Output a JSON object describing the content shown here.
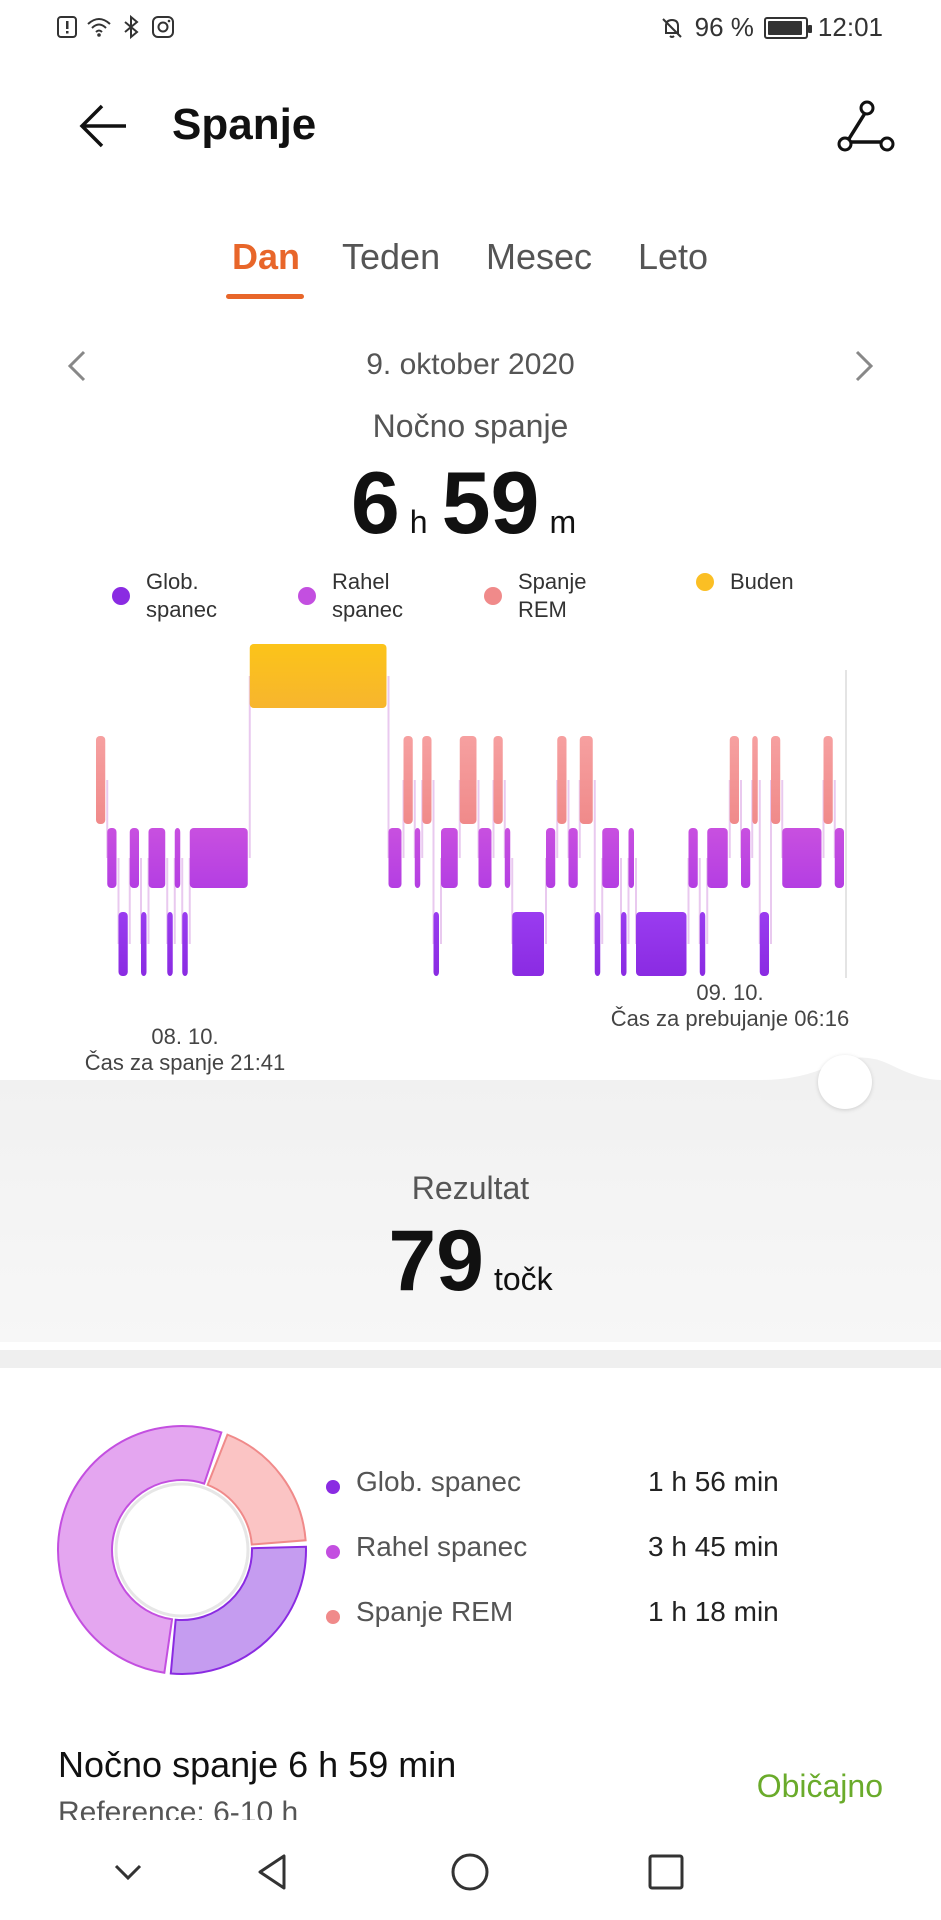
{
  "status_bar": {
    "battery": "96 %",
    "battery_level": 0.96,
    "time": "12:01"
  },
  "header": {
    "title": "Spanje"
  },
  "tabs": [
    {
      "label": "Dan",
      "active": true
    },
    {
      "label": "Teden",
      "active": false
    },
    {
      "label": "Mesec",
      "active": false
    },
    {
      "label": "Leto",
      "active": false
    }
  ],
  "date": "9. oktober 2020",
  "night": {
    "label": "Nočno spanje",
    "hours": "6",
    "hours_unit": "h",
    "minutes": "59",
    "minutes_unit": "m"
  },
  "legend": [
    {
      "label": "Glob. spanec",
      "color": "#8a2be2"
    },
    {
      "label": "Rahel spanec",
      "color": "#c34fe0"
    },
    {
      "label": "Spanje REM",
      "color": "#f08a8a"
    },
    {
      "label": "Buden",
      "color": "#fbbf24"
    }
  ],
  "chart": {
    "start_date": "08. 10.",
    "start_text": "Čas za spanje 21:41",
    "end_date": "09. 10.",
    "end_text": "Čas za prebujanje 06:16"
  },
  "chart_data": {
    "type": "bar",
    "levels": [
      "Buden",
      "Spanje REM",
      "Rahel spanec",
      "Glob. spanec"
    ],
    "start": "21:41",
    "end": "06:16",
    "segments": [
      {
        "stage": "Spanje REM",
        "from": 0.0,
        "to": 0.015
      },
      {
        "stage": "Rahel spanec",
        "from": 0.015,
        "to": 0.03
      },
      {
        "stage": "Glob. spanec",
        "from": 0.03,
        "to": 0.045
      },
      {
        "stage": "Rahel spanec",
        "from": 0.045,
        "to": 0.06
      },
      {
        "stage": "Glob. spanec",
        "from": 0.06,
        "to": 0.07
      },
      {
        "stage": "Rahel spanec",
        "from": 0.07,
        "to": 0.095
      },
      {
        "stage": "Glob. spanec",
        "from": 0.095,
        "to": 0.105
      },
      {
        "stage": "Rahel spanec",
        "from": 0.105,
        "to": 0.115
      },
      {
        "stage": "Glob. spanec",
        "from": 0.115,
        "to": 0.125
      },
      {
        "stage": "Rahel spanec",
        "from": 0.125,
        "to": 0.205
      },
      {
        "stage": "Buden",
        "from": 0.205,
        "to": 0.39
      },
      {
        "stage": "Rahel spanec",
        "from": 0.39,
        "to": 0.41
      },
      {
        "stage": "Spanje REM",
        "from": 0.41,
        "to": 0.425
      },
      {
        "stage": "Rahel spanec",
        "from": 0.425,
        "to": 0.435
      },
      {
        "stage": "Spanje REM",
        "from": 0.435,
        "to": 0.45
      },
      {
        "stage": "Glob. spanec",
        "from": 0.45,
        "to": 0.46
      },
      {
        "stage": "Rahel spanec",
        "from": 0.46,
        "to": 0.485
      },
      {
        "stage": "Spanje REM",
        "from": 0.485,
        "to": 0.51
      },
      {
        "stage": "Rahel spanec",
        "from": 0.51,
        "to": 0.53
      },
      {
        "stage": "Spanje REM",
        "from": 0.53,
        "to": 0.545
      },
      {
        "stage": "Rahel spanec",
        "from": 0.545,
        "to": 0.555
      },
      {
        "stage": "Glob. spanec",
        "from": 0.555,
        "to": 0.6
      },
      {
        "stage": "Rahel spanec",
        "from": 0.6,
        "to": 0.615
      },
      {
        "stage": "Spanje REM",
        "from": 0.615,
        "to": 0.63
      },
      {
        "stage": "Rahel spanec",
        "from": 0.63,
        "to": 0.645
      },
      {
        "stage": "Spanje REM",
        "from": 0.645,
        "to": 0.665
      },
      {
        "stage": "Glob. spanec",
        "from": 0.665,
        "to": 0.675
      },
      {
        "stage": "Rahel spanec",
        "from": 0.675,
        "to": 0.7
      },
      {
        "stage": "Glob. spanec",
        "from": 0.7,
        "to": 0.71
      },
      {
        "stage": "Rahel spanec",
        "from": 0.71,
        "to": 0.72
      },
      {
        "stage": "Glob. spanec",
        "from": 0.72,
        "to": 0.79
      },
      {
        "stage": "Rahel spanec",
        "from": 0.79,
        "to": 0.805
      },
      {
        "stage": "Glob. spanec",
        "from": 0.805,
        "to": 0.815
      },
      {
        "stage": "Rahel spanec",
        "from": 0.815,
        "to": 0.845
      },
      {
        "stage": "Spanje REM",
        "from": 0.845,
        "to": 0.86
      },
      {
        "stage": "Rahel spanec",
        "from": 0.86,
        "to": 0.875
      },
      {
        "stage": "Spanje REM",
        "from": 0.875,
        "to": 0.885
      },
      {
        "stage": "Glob. spanec",
        "from": 0.885,
        "to": 0.9
      },
      {
        "stage": "Spanje REM",
        "from": 0.9,
        "to": 0.915
      },
      {
        "stage": "Rahel spanec",
        "from": 0.915,
        "to": 0.97
      },
      {
        "stage": "Spanje REM",
        "from": 0.97,
        "to": 0.985
      },
      {
        "stage": "Rahel spanec",
        "from": 0.985,
        "to": 1.0
      }
    ]
  },
  "score": {
    "label": "Rezultat",
    "value": "79",
    "unit": "točk"
  },
  "breakdown": [
    {
      "label": "Glob. spanec",
      "value": "1 h 56 min",
      "minutes": 116,
      "color": "#8a2be2",
      "fill": "#c59cf0"
    },
    {
      "label": "Rahel spanec",
      "value": "3 h 45 min",
      "minutes": 225,
      "color": "#c34fe0",
      "fill": "#e4a6f0"
    },
    {
      "label": "Spanje REM",
      "value": "1 h 18 min",
      "minutes": 78,
      "color": "#f08a8a",
      "fill": "#fbc4c4"
    }
  ],
  "summary": {
    "title": "Nočno spanje  6 h 59 min",
    "reference": "Reference: 6-10 h",
    "status": "Običajno"
  }
}
